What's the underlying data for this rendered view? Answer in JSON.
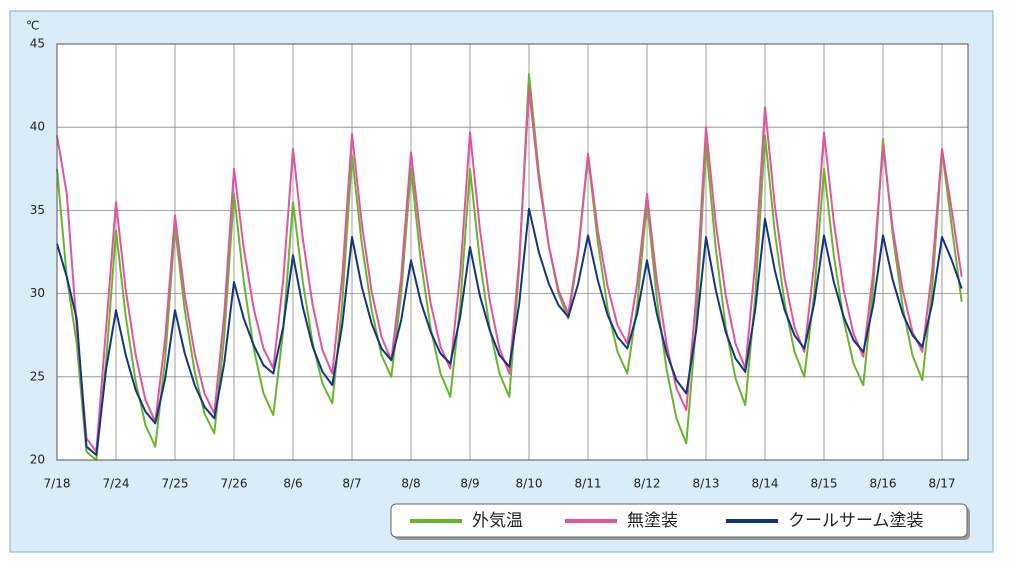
{
  "chart_data": {
    "type": "line",
    "y_unit": "℃",
    "categories": [
      "7/18",
      null,
      null,
      null,
      null,
      null,
      "7/24",
      null,
      null,
      null,
      null,
      null,
      "7/25",
      null,
      null,
      null,
      null,
      null,
      "7/26",
      null,
      null,
      null,
      null,
      null,
      "8/6",
      null,
      null,
      null,
      null,
      null,
      "8/7",
      null,
      null,
      null,
      null,
      null,
      "8/8",
      null,
      null,
      null,
      null,
      null,
      "8/9",
      null,
      null,
      null,
      null,
      null,
      "8/10",
      null,
      null,
      null,
      null,
      null,
      "8/11",
      null,
      null,
      null,
      null,
      null,
      "8/12",
      null,
      null,
      null,
      null,
      null,
      "8/13",
      null,
      null,
      null,
      null,
      null,
      "8/14",
      null,
      null,
      null,
      null,
      null,
      "8/15",
      null,
      null,
      null,
      null,
      null,
      "8/16",
      null,
      null,
      null,
      null,
      null,
      "8/17",
      null,
      null
    ],
    "series": [
      {
        "name": "外気温",
        "color": "#6ab42d",
        "values": [
          37.5,
          31,
          27,
          20.5,
          20,
          26,
          33.8,
          28.6,
          24.7,
          22.1,
          20.8,
          26.1,
          34,
          29,
          25.3,
          22.8,
          21.6,
          27.4,
          36,
          30.7,
          26.7,
          24,
          22.7,
          27.8,
          35.5,
          30.7,
          27,
          24.6,
          23.4,
          29.4,
          38.3,
          33,
          29,
          26.3,
          25,
          30,
          37.5,
          32,
          27.9,
          25.2,
          23.8,
          29.3,
          37.5,
          32,
          27.9,
          25.2,
          23.8,
          31.6,
          43.2,
          37.3,
          32.9,
          30,
          28.5,
          32.4,
          38.3,
          33.1,
          29.1,
          26.5,
          25.2,
          29.3,
          35.5,
          29.7,
          25.4,
          22.5,
          21,
          28.2,
          39,
          32.7,
          28,
          24.9,
          23.3,
          29.8,
          39.5,
          33.7,
          29.4,
          26.5,
          25,
          30,
          37.5,
          32.3,
          28.4,
          25.8,
          24.5,
          30.4,
          39.3,
          33.5,
          29.2,
          26.3,
          24.8,
          30.3,
          38.6,
          34,
          29.5
        ]
      },
      {
        "name": "無塗装",
        "color": "#e0569b",
        "values": [
          39.5,
          36,
          28,
          21.3,
          20.5,
          28,
          35.5,
          30.2,
          26.3,
          23.6,
          22.3,
          27.3,
          34.7,
          29.9,
          26.4,
          24,
          22.8,
          28.7,
          37.5,
          32.7,
          29.1,
          26.7,
          25.5,
          30.8,
          38.7,
          33.3,
          29.3,
          26.6,
          25.2,
          31,
          39.6,
          34.2,
          30.1,
          27.4,
          26,
          31,
          38.5,
          33.3,
          29.4,
          26.8,
          25.5,
          31.2,
          39.7,
          33.9,
          29.6,
          26.7,
          25.2,
          32,
          42.3,
          36.9,
          32.9,
          30.2,
          28.8,
          32.6,
          38.4,
          33.8,
          30.4,
          28.1,
          27,
          30.6,
          36,
          30.8,
          26.9,
          24.3,
          23,
          29.8,
          40,
          34.2,
          29.9,
          27,
          25.5,
          31.8,
          41.2,
          35.3,
          30.9,
          28,
          26.5,
          31.8,
          39.7,
          34.3,
          30.2,
          27.6,
          26.2,
          31.3,
          38.9,
          33.9,
          30.2,
          27.7,
          26.5,
          31.4,
          38.7,
          35,
          31
        ]
      },
      {
        "name": "クールサーム塗装",
        "color": "#13367e",
        "values": [
          33,
          31,
          28.5,
          20.8,
          20.3,
          25.5,
          29,
          26.3,
          24.2,
          22.9,
          22.2,
          24.9,
          29,
          26.4,
          24.5,
          23.2,
          22.5,
          25.8,
          30.7,
          28.5,
          26.9,
          25.7,
          25.2,
          28,
          32.3,
          29.2,
          26.8,
          25.3,
          24.5,
          28.1,
          33.4,
          30.4,
          28.2,
          26.7,
          26,
          28.4,
          32,
          29.5,
          27.7,
          26.4,
          25.8,
          28.6,
          32.8,
          29.9,
          27.8,
          26.3,
          25.6,
          29.4,
          35.1,
          32.5,
          30.6,
          29.3,
          28.6,
          30.6,
          33.5,
          30.8,
          28.7,
          27.4,
          26.7,
          28.8,
          32,
          28.8,
          26.4,
          24.8,
          24,
          27.8,
          33.4,
          30.2,
          27.7,
          26.1,
          25.3,
          29,
          34.5,
          31.4,
          29,
          27.5,
          26.7,
          29.4,
          33.5,
          30.7,
          28.6,
          27.2,
          26.5,
          29.3,
          33.5,
          30.8,
          28.8,
          27.5,
          26.8,
          29.4,
          33.4,
          32,
          30.3
        ]
      }
    ],
    "ylim": [
      20,
      45
    ],
    "yticks": [
      20,
      25,
      30,
      35,
      40,
      45
    ],
    "grid": true,
    "legend": "bottom-right"
  }
}
